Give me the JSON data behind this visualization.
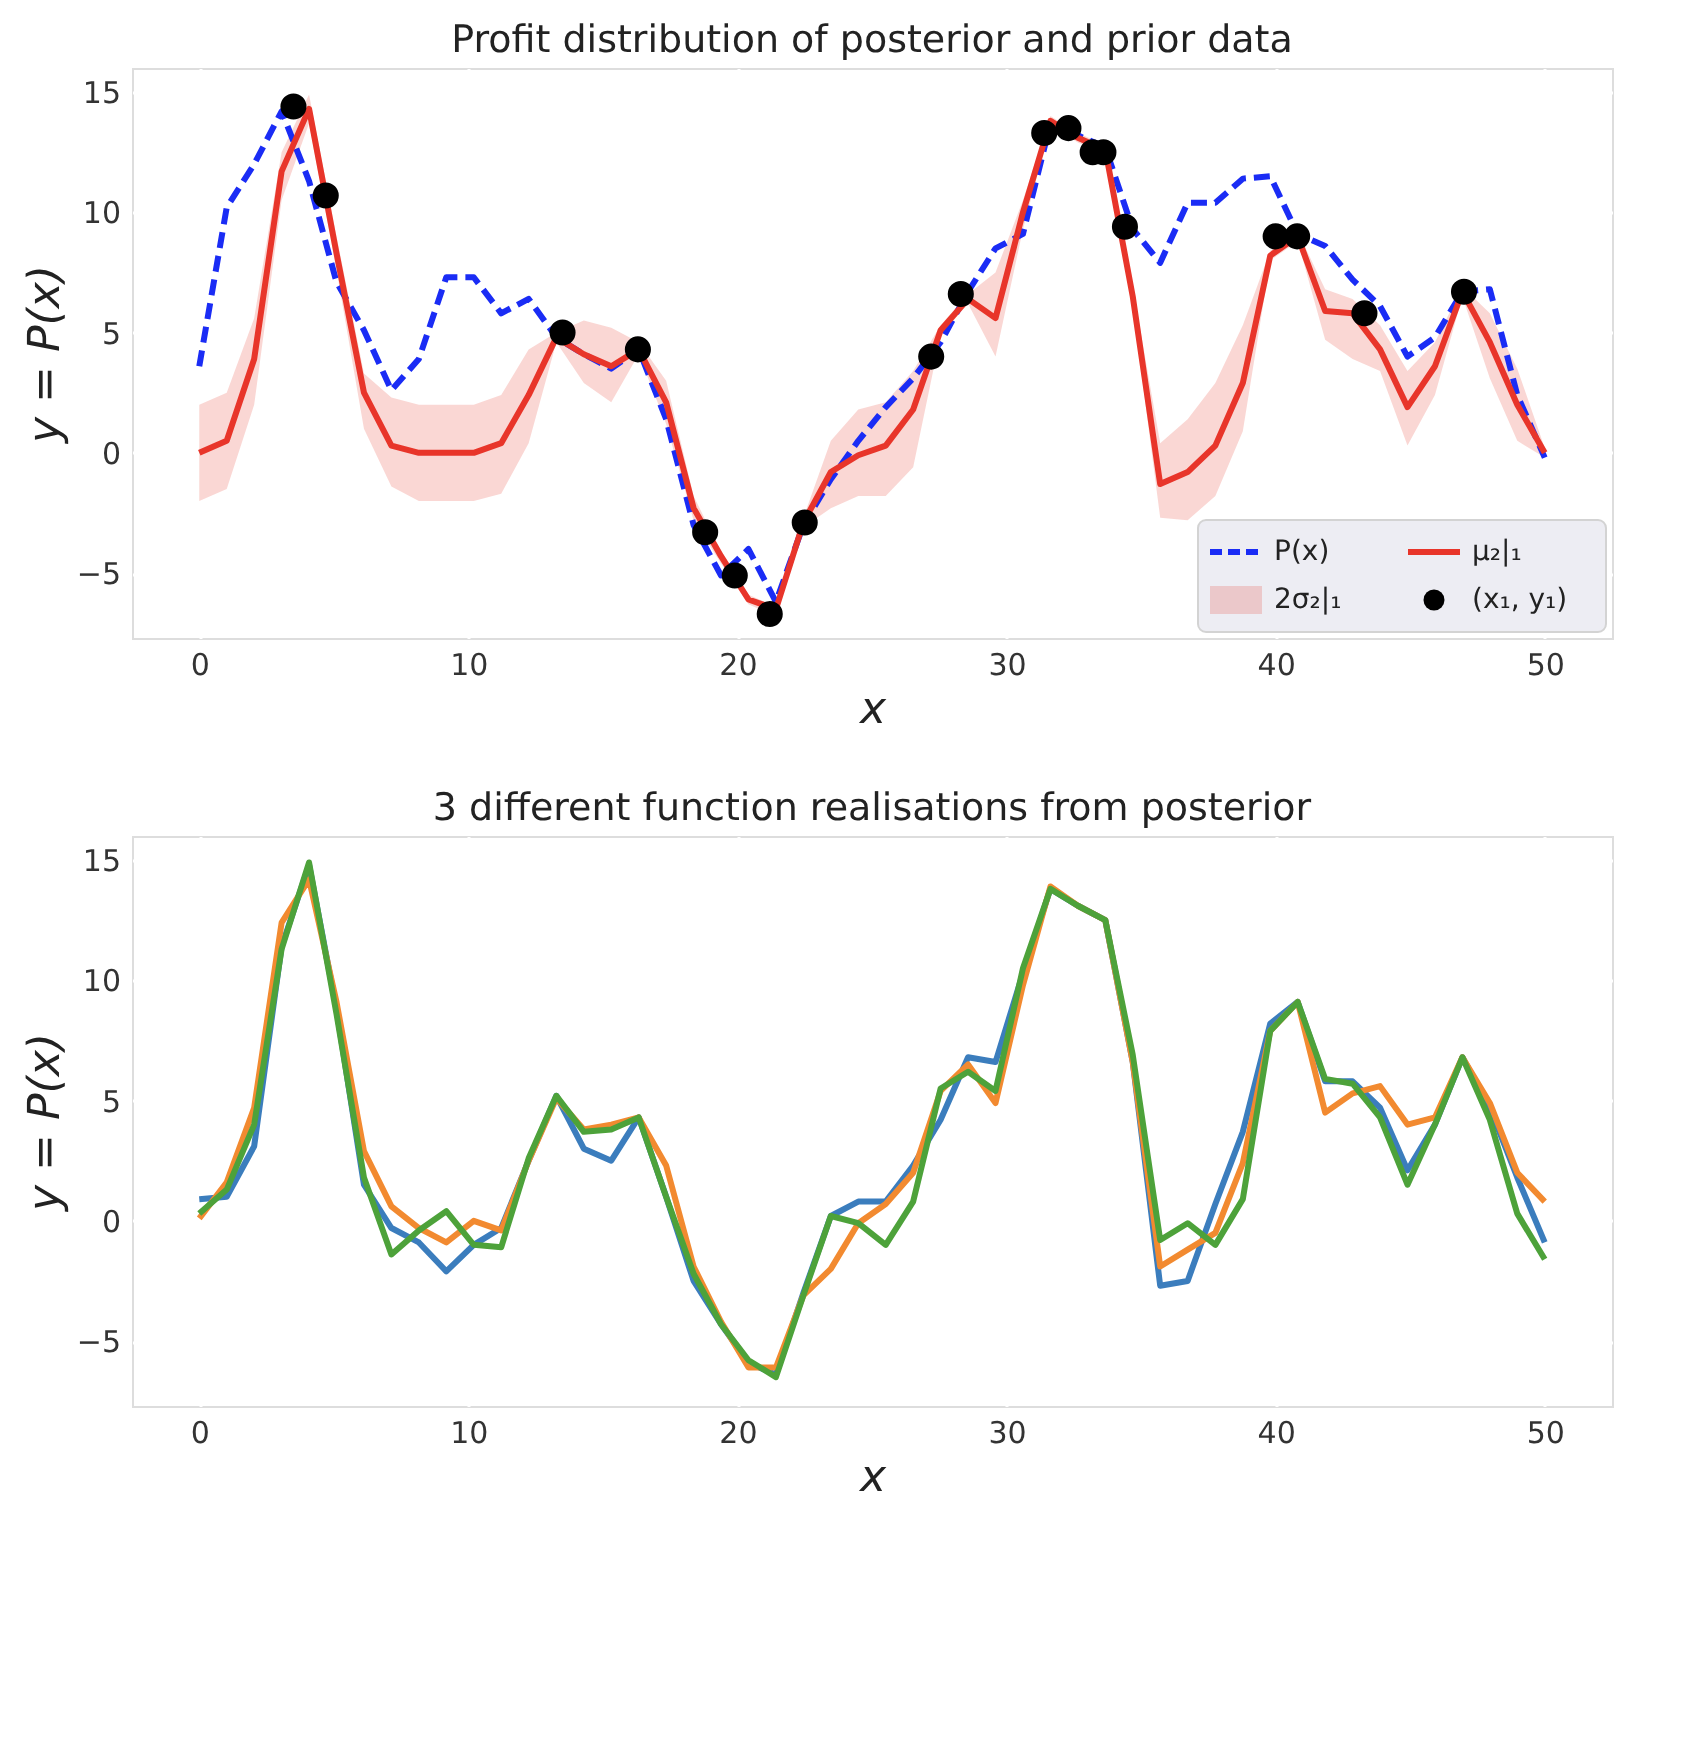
{
  "chart_data": [
    {
      "type": "line",
      "title": "Profit distribution of posterior and prior data",
      "xlabel": "x",
      "ylabel": "y = P(x)",
      "x": [
        0,
        1.02,
        2.04,
        3.06,
        4.08,
        5.1,
        6.12,
        7.14,
        8.16,
        9.18,
        10.2,
        11.22,
        12.24,
        13.27,
        14.29,
        15.31,
        16.33,
        17.35,
        18.37,
        19.39,
        20.41,
        21.43,
        22.45,
        23.47,
        24.49,
        25.51,
        26.53,
        27.55,
        28.57,
        29.59,
        30.61,
        31.63,
        32.65,
        33.67,
        34.69,
        35.71,
        36.73,
        37.76,
        38.78,
        39.8,
        40.82,
        41.84,
        42.86,
        43.88,
        44.9,
        45.92,
        46.94,
        47.96,
        48.98,
        50
      ],
      "series": [
        {
          "name": "P(x)",
          "type": "line",
          "line_style": "dashed",
          "color": "#1a2cf5",
          "values": [
            3.6,
            10.2,
            12.0,
            14.2,
            11.3,
            7.1,
            5.1,
            2.6,
            3.9,
            7.3,
            7.3,
            5.8,
            6.4,
            4.8,
            4.1,
            3.5,
            4.3,
            1.4,
            -3.0,
            -5.1,
            -4.0,
            -6.2,
            -3.0,
            -1.1,
            0.5,
            1.9,
            3.1,
            4.6,
            6.7,
            8.5,
            9.1,
            13.7,
            13.2,
            12.7,
            9.3,
            7.9,
            10.4,
            10.4,
            11.4,
            11.5,
            9.1,
            8.6,
            7.2,
            6.1,
            4.0,
            4.8,
            6.7,
            6.8,
            2.4,
            -0.2
          ]
        },
        {
          "name": "μ₂|₁",
          "type": "line",
          "line_style": "solid",
          "color": "#e8352a",
          "values": [
            0.0,
            0.5,
            3.9,
            11.7,
            14.3,
            8.3,
            2.5,
            0.3,
            0.0,
            0.0,
            0.0,
            0.4,
            2.4,
            4.8,
            4.1,
            3.6,
            4.3,
            2.1,
            -2.3,
            -4.3,
            -6.1,
            -6.5,
            -2.9,
            -0.8,
            -0.1,
            0.3,
            1.8,
            5.1,
            6.4,
            5.6,
            10.0,
            13.8,
            13.1,
            12.6,
            6.5,
            -1.3,
            -0.8,
            0.3,
            2.9,
            8.2,
            9.0,
            5.9,
            5.8,
            4.3,
            1.9,
            3.6,
            6.7,
            4.6,
            2.0,
            0.0
          ],
          "lower": [
            -2.0,
            -1.5,
            2.0,
            10.5,
            13.7,
            7.6,
            1.0,
            -1.4,
            -2.0,
            -2.0,
            -2.0,
            -1.7,
            0.4,
            4.6,
            2.9,
            2.1,
            4.1,
            1.2,
            -2.8,
            -4.6,
            -6.3,
            -6.8,
            -3.1,
            -2.3,
            -1.8,
            -1.8,
            -0.6,
            4.9,
            6.2,
            4.0,
            9.3,
            13.6,
            12.9,
            12.4,
            6.1,
            -2.7,
            -2.8,
            -1.8,
            0.9,
            8.0,
            8.8,
            4.7,
            3.9,
            3.4,
            0.3,
            2.4,
            6.5,
            3.1,
            0.5,
            -0.2
          ],
          "upper": [
            2.0,
            2.5,
            5.6,
            12.5,
            14.9,
            9.0,
            3.3,
            2.3,
            2.0,
            2.0,
            2.0,
            2.4,
            4.3,
            5.0,
            5.5,
            5.2,
            4.6,
            3.0,
            -1.8,
            -4.1,
            -5.9,
            -6.4,
            -2.7,
            0.5,
            1.8,
            2.1,
            3.4,
            5.3,
            6.6,
            7.5,
            10.5,
            14.0,
            13.3,
            12.8,
            6.9,
            0.4,
            1.4,
            2.9,
            5.3,
            8.4,
            9.2,
            6.8,
            6.4,
            5.3,
            3.4,
            4.6,
            6.9,
            5.8,
            3.5,
            0.2
          ]
        },
        {
          "name": "(x₁, y₁)",
          "type": "scatter",
          "marker": "circle",
          "color": "#000000",
          "x": [
            3.5,
            4.7,
            13.5,
            16.3,
            18.8,
            19.9,
            21.2,
            22.5,
            27.2,
            28.3,
            31.4,
            32.3,
            33.2,
            33.6,
            34.4,
            40.0,
            40.8,
            43.3,
            47.0
          ],
          "values": [
            14.4,
            10.7,
            5.0,
            4.3,
            -3.3,
            -5.1,
            -6.7,
            -2.9,
            4.0,
            6.6,
            13.3,
            13.5,
            12.5,
            12.5,
            9.4,
            9.0,
            9.0,
            5.8,
            6.7
          ]
        }
      ],
      "annotations": [
        "2σ₂|₁"
      ],
      "xlim": [
        -2.5,
        52.5
      ],
      "xticks": [
        0,
        10,
        20,
        30,
        40,
        50
      ],
      "ylim": [
        -7.7,
        16.0
      ],
      "yticks": [
        -5,
        0,
        5,
        10,
        15
      ],
      "grid": true,
      "legend": "bottom right"
    },
    {
      "type": "line",
      "title": "3 different function realisations from posterior",
      "xlabel": "x",
      "ylabel": "y = P(x)",
      "x": [
        0,
        1.02,
        2.04,
        3.06,
        4.08,
        5.1,
        6.12,
        7.14,
        8.16,
        9.18,
        10.2,
        11.22,
        12.24,
        13.27,
        14.29,
        15.31,
        16.33,
        17.35,
        18.37,
        19.39,
        20.41,
        21.43,
        22.45,
        23.47,
        24.49,
        25.51,
        26.53,
        27.55,
        28.57,
        29.59,
        30.61,
        31.63,
        32.65,
        33.67,
        34.69,
        35.71,
        36.73,
        37.76,
        38.78,
        39.8,
        40.82,
        41.84,
        42.86,
        43.88,
        44.9,
        45.92,
        46.94,
        47.96,
        48.98,
        50
      ],
      "series": [
        {
          "color": "#3b7dbd",
          "line_style": "solid",
          "values": [
            0.9,
            1.0,
            3.1,
            11.4,
            14.8,
            8.8,
            1.5,
            -0.3,
            -0.9,
            -2.1,
            -1.0,
            -0.3,
            2.5,
            5.2,
            3.0,
            2.5,
            4.3,
            1.0,
            -2.5,
            -4.3,
            -5.9,
            -6.4,
            -3.0,
            0.2,
            0.8,
            0.8,
            2.3,
            4.2,
            6.8,
            6.6,
            10.3,
            13.8,
            13.1,
            12.5,
            6.6,
            -2.7,
            -2.5,
            0.7,
            3.7,
            8.2,
            9.1,
            5.8,
            5.8,
            4.7,
            2.1,
            4.0,
            6.8,
            4.7,
            1.8,
            -0.9
          ]
        },
        {
          "color": "#f28a30",
          "line_style": "solid",
          "values": [
            0.1,
            1.6,
            4.7,
            12.4,
            14.2,
            9.1,
            2.9,
            0.6,
            -0.3,
            -0.9,
            0.0,
            -0.4,
            2.5,
            5.1,
            3.8,
            4.0,
            4.3,
            2.3,
            -1.9,
            -4.2,
            -6.1,
            -6.1,
            -3.1,
            -2.0,
            -0.1,
            0.7,
            2.0,
            5.4,
            6.5,
            4.9,
            9.8,
            13.9,
            13.1,
            12.5,
            6.6,
            -1.9,
            -1.2,
            -0.5,
            2.4,
            7.9,
            9.1,
            4.5,
            5.3,
            5.6,
            4.0,
            4.3,
            6.8,
            4.9,
            2.0,
            0.8
          ]
        },
        {
          "color": "#4da23a",
          "line_style": "solid",
          "values": [
            0.3,
            1.3,
            4.0,
            11.3,
            14.9,
            8.6,
            1.8,
            -1.4,
            -0.4,
            0.4,
            -1.0,
            -1.1,
            2.6,
            5.2,
            3.7,
            3.8,
            4.3,
            1.0,
            -2.2,
            -4.3,
            -5.8,
            -6.5,
            -3.1,
            0.2,
            -0.1,
            -1.0,
            0.8,
            5.5,
            6.2,
            5.4,
            10.5,
            13.8,
            13.1,
            12.5,
            6.9,
            -0.8,
            -0.1,
            -1.0,
            0.9,
            7.9,
            9.1,
            5.9,
            5.7,
            4.3,
            1.5,
            4.0,
            6.8,
            4.2,
            0.3,
            -1.6
          ]
        }
      ],
      "xlim": [
        -2.5,
        52.5
      ],
      "xticks": [
        0,
        10,
        20,
        30,
        40,
        50
      ],
      "ylim": [
        -7.7,
        16.0
      ],
      "yticks": [
        -5,
        0,
        5,
        10,
        15
      ],
      "grid": true
    }
  ]
}
